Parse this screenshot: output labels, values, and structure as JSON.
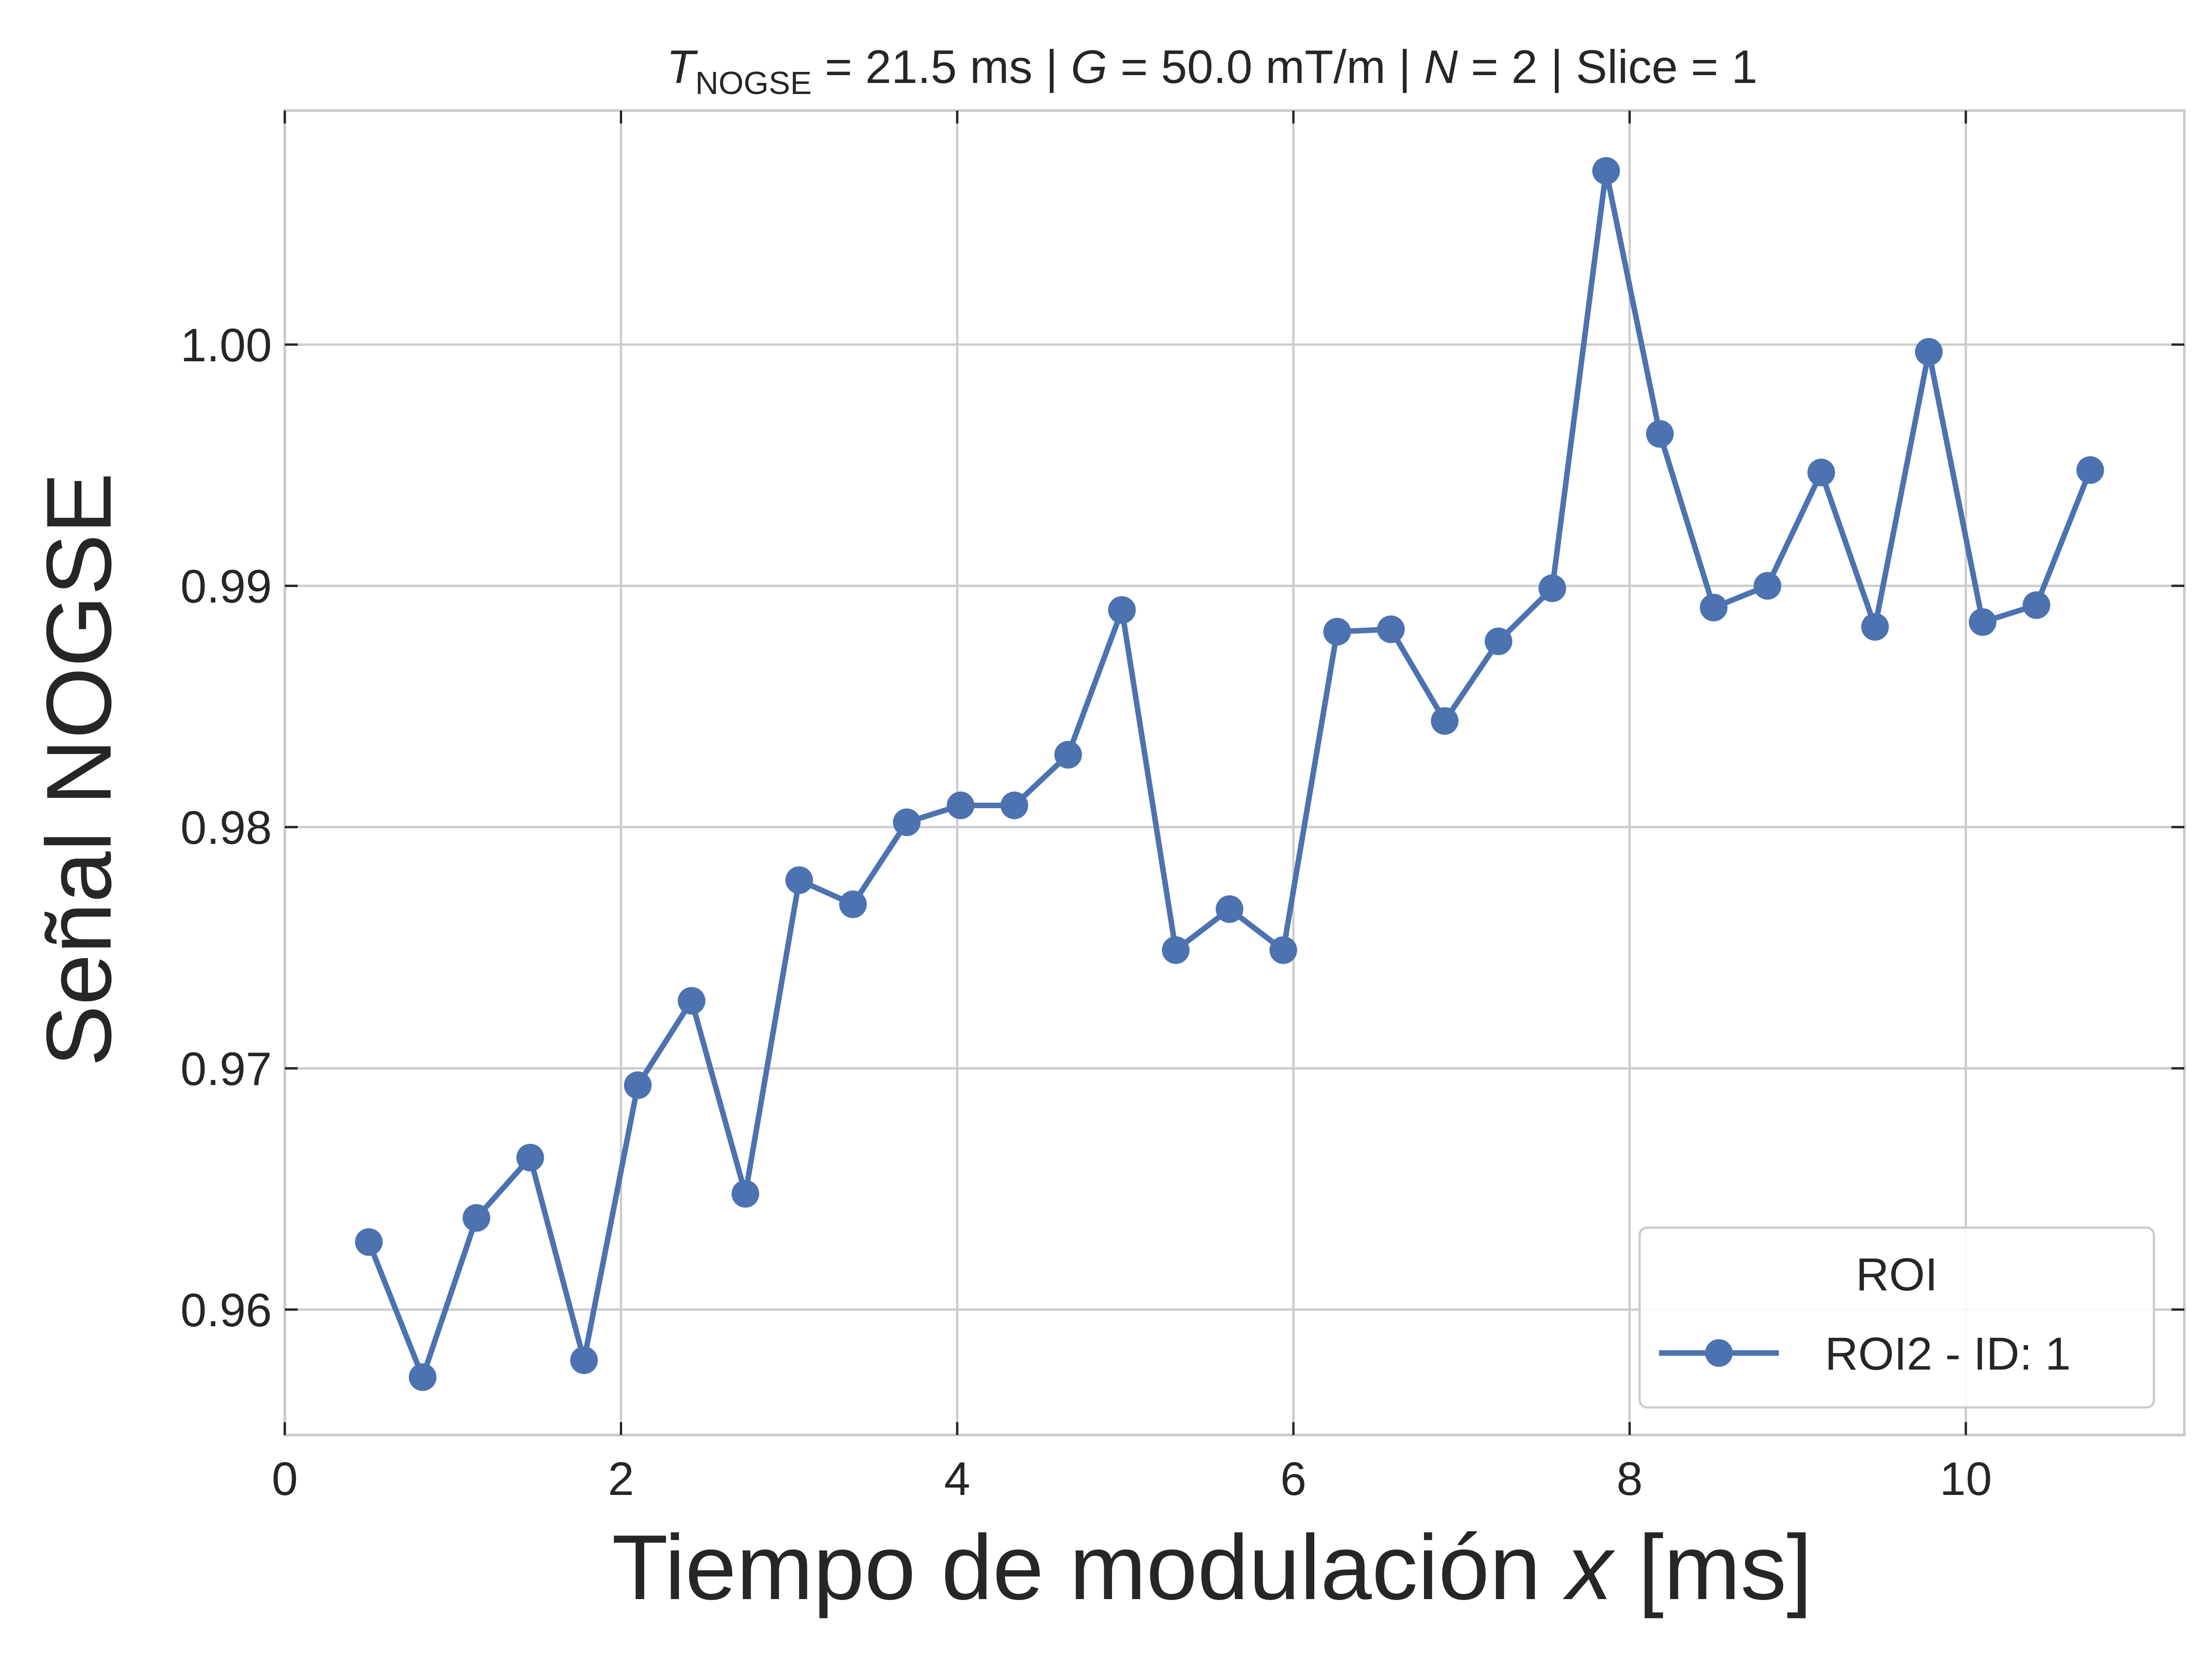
{
  "chart_data": {
    "type": "line",
    "title": {
      "t_symbol": "T",
      "t_subscript": "NOGSE",
      "t_value": " = 21.5 ms | ",
      "g_symbol": "G",
      "g_value": " = 50.0 mT/m | ",
      "n_symbol": "N",
      "n_value": " = 2 | Slice = 1"
    },
    "xlabel": {
      "text": "Tiempo de modulación ",
      "var": "x",
      "unit": " [ms]"
    },
    "ylabel": "Señal NOGSE",
    "xlim": [
      0,
      11.3
    ],
    "ylim": [
      0.9548,
      1.0097
    ],
    "x_ticks": [
      0,
      2,
      4,
      6,
      8,
      10
    ],
    "y_ticks": [
      0.96,
      0.97,
      0.98,
      0.99,
      1.0
    ],
    "x_tick_labels": [
      "0",
      "2",
      "4",
      "6",
      "8",
      "10"
    ],
    "y_tick_labels": [
      "0.96",
      "0.97",
      "0.98",
      "0.99",
      "1.00"
    ],
    "grid": true,
    "legend": {
      "title": "ROI",
      "position": "lower-right"
    },
    "series": [
      {
        "name": "ROI2 - ID: 1",
        "color": "#4c72b0",
        "marker": "circle",
        "x": [
          0.5,
          0.82,
          1.14,
          1.46,
          1.78,
          2.1,
          2.42,
          2.74,
          3.06,
          3.38,
          3.7,
          4.02,
          4.34,
          4.66,
          4.98,
          5.3,
          5.62,
          5.94,
          6.26,
          6.58,
          6.9,
          7.22,
          7.54,
          7.86,
          8.18,
          8.5,
          8.82,
          9.14,
          9.46,
          9.78,
          10.1,
          10.42,
          10.74
        ],
        "y": [
          0.9628,
          0.9572,
          0.9638,
          0.9663,
          0.9579,
          0.9693,
          0.9728,
          0.9648,
          0.9778,
          0.9768,
          0.9802,
          0.9809,
          0.9809,
          0.983,
          0.989,
          0.9749,
          0.9766,
          0.9749,
          0.9881,
          0.9882,
          0.9844,
          0.9877,
          0.9899,
          1.0072,
          0.9963,
          0.9891,
          0.99,
          0.9947,
          0.9883,
          0.9997,
          0.9885,
          0.9892,
          0.9948
        ]
      }
    ]
  }
}
